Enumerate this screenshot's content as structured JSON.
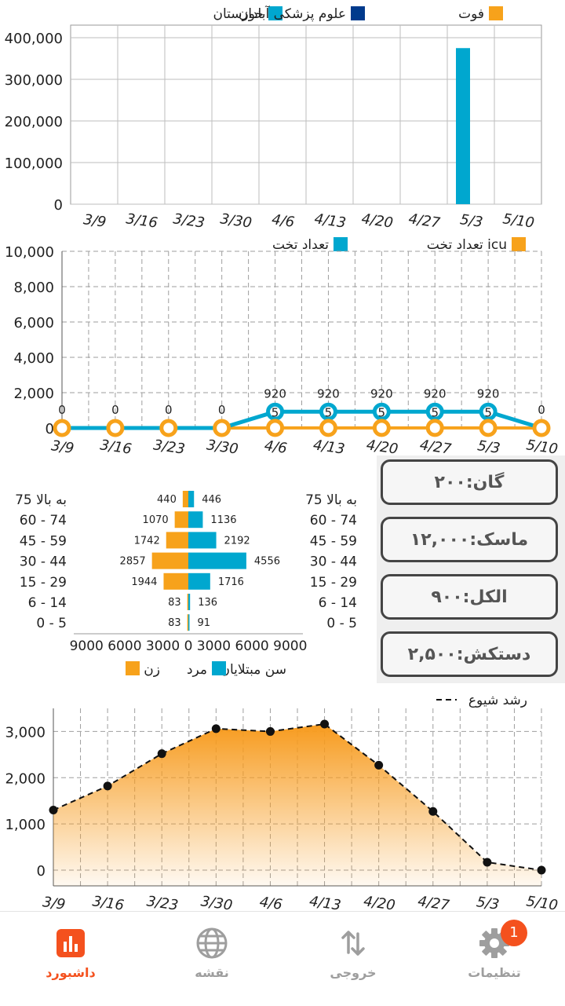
{
  "colors": {
    "cyan": "#00a7cf",
    "navy": "#003a8c",
    "orange": "#f7a21b",
    "active": "#f4511e",
    "inactive": "#9e9e9e"
  },
  "chart_data": [
    {
      "type": "bar",
      "categories": [
        "3/9",
        "3/16",
        "3/23",
        "3/30",
        "4/6",
        "4/13",
        "4/20",
        "4/27",
        "5/3",
        "5/10"
      ],
      "legend": [
        "خوزستان",
        "علوم پزشکی آبادان",
        "فوت"
      ],
      "series": [
        {
          "name": "خوزستان",
          "values": [
            0,
            0,
            0,
            0,
            0,
            0,
            0,
            0,
            375000,
            0
          ]
        },
        {
          "name": "علوم پزشکی آبادان",
          "values": [
            0,
            0,
            0,
            0,
            0,
            0,
            0,
            0,
            0,
            0
          ]
        },
        {
          "name": "فوت",
          "values": [
            0,
            0,
            0,
            0,
            0,
            0,
            0,
            0,
            0,
            0
          ]
        }
      ],
      "yticks": [
        "0",
        "100,000",
        "200,000",
        "300,000",
        "400,000"
      ],
      "ylim": [
        0,
        400000
      ]
    },
    {
      "type": "line",
      "categories": [
        "3/9",
        "3/16",
        "3/23",
        "3/30",
        "4/6",
        "4/13",
        "4/20",
        "4/27",
        "5/3",
        "5/10"
      ],
      "legend": [
        "تعداد تخت",
        "تعداد تخت icu"
      ],
      "series": [
        {
          "name": "تعداد تخت",
          "values": [
            0,
            0,
            0,
            0,
            920,
            920,
            920,
            920,
            920,
            0
          ]
        },
        {
          "name": "تعداد تخت icu",
          "values": [
            0,
            0,
            0,
            0,
            5,
            5,
            5,
            5,
            5,
            0
          ]
        }
      ],
      "labels_top": [
        "0",
        "0",
        "0",
        "0",
        "920",
        "920",
        "920",
        "920",
        "920",
        "0"
      ],
      "labels_inner": [
        "",
        "",
        "",
        "",
        "5",
        "5",
        "5",
        "5",
        "5",
        ""
      ],
      "yticks": [
        "0",
        "2,000",
        "4,000",
        "6,000",
        "8,000",
        "10,000"
      ],
      "ylim": [
        0,
        10000
      ]
    },
    {
      "type": "bar",
      "orientation": "horizontal",
      "title": "سن مبتلایان",
      "age_groups": [
        "75 به بالا",
        "60 - 74",
        "45 - 59",
        "30 - 44",
        "15 - 29",
        "6 - 14",
        "0 - 5"
      ],
      "series": [
        {
          "name": "زن",
          "values": [
            440,
            1070,
            1742,
            2857,
            1944,
            83,
            83
          ]
        },
        {
          "name": "مرد",
          "values": [
            446,
            1136,
            2192,
            4556,
            1716,
            136,
            91
          ]
        }
      ],
      "female_labels": [
        "440",
        "1070",
        "1742",
        "2857",
        "1944",
        "83",
        "83"
      ],
      "male_labels": [
        "446",
        "1136",
        "2192",
        "4556",
        "1716",
        "136",
        "91"
      ],
      "xtick_text": "9000 6000 3000   0   3000 6000 9000",
      "legend": {
        "male": "مرد",
        "female": "زن"
      },
      "xlim": [
        -9000,
        9000
      ]
    },
    {
      "type": "area",
      "legend": "رشد شیوع",
      "categories": [
        "3/9",
        "3/16",
        "3/23",
        "3/30",
        "4/6",
        "4/13",
        "4/20",
        "4/27",
        "5/3",
        "5/10"
      ],
      "values": [
        1300,
        1820,
        2520,
        3060,
        3000,
        3160,
        2270,
        1270,
        170,
        0
      ],
      "yticks": [
        "0",
        "1,000",
        "2,000",
        "3,000"
      ],
      "ylim": [
        0,
        3500
      ]
    }
  ],
  "cards": [
    "گان:۲۰۰",
    "ماسک:۱۲,۰۰۰",
    "الکل:۹۰۰",
    "دستکش:۲,۵۰۰"
  ],
  "nav": {
    "settings": "تنظیمات",
    "output": "خروجی",
    "map": "نقشه",
    "dashboard": "داشبورد",
    "badge": "1"
  }
}
